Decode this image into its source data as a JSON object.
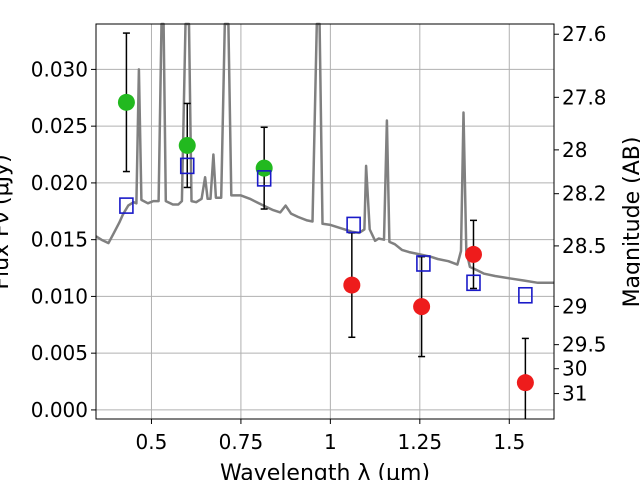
{
  "chart_data": {
    "type": "scatter",
    "title": "",
    "xlabel": "Wavelength  λ (μm)",
    "ylabel": "Flux Fν (μJy)",
    "y2label": "Magnitude (AB)",
    "xlim": [
      0.345,
      1.625
    ],
    "ylim": [
      -0.0008,
      0.034
    ],
    "grid": true,
    "x_ticks": [
      {
        "value": 0.5,
        "label": "0.5"
      },
      {
        "value": 0.75,
        "label": "0.75"
      },
      {
        "value": 1.0,
        "label": "1"
      },
      {
        "value": 1.25,
        "label": "1.25"
      },
      {
        "value": 1.5,
        "label": "1.5"
      }
    ],
    "y_ticks": [
      {
        "value": 0.0,
        "label": "0.000"
      },
      {
        "value": 0.005,
        "label": "0.005"
      },
      {
        "value": 0.01,
        "label": "0.010"
      },
      {
        "value": 0.015,
        "label": "0.015"
      },
      {
        "value": 0.02,
        "label": "0.020"
      },
      {
        "value": 0.025,
        "label": "0.025"
      },
      {
        "value": 0.03,
        "label": "0.030"
      }
    ],
    "y2_ticks": [
      {
        "flux": 0.0331,
        "label": "27.6"
      },
      {
        "flux": 0.02754,
        "label": "27.8"
      },
      {
        "flux": 0.02291,
        "label": "28"
      },
      {
        "flux": 0.01905,
        "label": "28.2"
      },
      {
        "flux": 0.01445,
        "label": "28.5"
      },
      {
        "flux": 0.00912,
        "label": "29"
      },
      {
        "flux": 0.00575,
        "label": "29.5"
      },
      {
        "flux": 0.00363,
        "label": "30"
      },
      {
        "flux": 0.00144,
        "label": "31"
      }
    ],
    "spectrum": {
      "color": "#808080",
      "points": [
        [
          0.345,
          0.0153
        ],
        [
          0.36,
          0.015
        ],
        [
          0.38,
          0.0147
        ],
        [
          0.395,
          0.0156
        ],
        [
          0.41,
          0.0165
        ],
        [
          0.42,
          0.0172
        ],
        [
          0.435,
          0.018
        ],
        [
          0.45,
          0.0183
        ],
        [
          0.458,
          0.0182
        ],
        [
          0.465,
          0.03
        ],
        [
          0.472,
          0.0185
        ],
        [
          0.49,
          0.0182
        ],
        [
          0.505,
          0.0184
        ],
        [
          0.52,
          0.0184
        ],
        [
          0.528,
          0.034
        ],
        [
          0.534,
          0.034
        ],
        [
          0.54,
          0.0184
        ],
        [
          0.56,
          0.0181
        ],
        [
          0.575,
          0.0181
        ],
        [
          0.585,
          0.0184
        ],
        [
          0.595,
          0.034
        ],
        [
          0.605,
          0.034
        ],
        [
          0.612,
          0.0184
        ],
        [
          0.625,
          0.0183
        ],
        [
          0.64,
          0.0186
        ],
        [
          0.65,
          0.0205
        ],
        [
          0.657,
          0.0186
        ],
        [
          0.665,
          0.0186
        ],
        [
          0.673,
          0.0225
        ],
        [
          0.68,
          0.0187
        ],
        [
          0.695,
          0.0187
        ],
        [
          0.705,
          0.034
        ],
        [
          0.715,
          0.034
        ],
        [
          0.723,
          0.0189
        ],
        [
          0.735,
          0.0189
        ],
        [
          0.75,
          0.0189
        ],
        [
          0.775,
          0.0186
        ],
        [
          0.8,
          0.0182
        ],
        [
          0.82,
          0.0179
        ],
        [
          0.84,
          0.0176
        ],
        [
          0.86,
          0.0174
        ],
        [
          0.875,
          0.018
        ],
        [
          0.89,
          0.0173
        ],
        [
          0.91,
          0.017
        ],
        [
          0.935,
          0.0167
        ],
        [
          0.95,
          0.0166
        ],
        [
          0.962,
          0.034
        ],
        [
          0.97,
          0.034
        ],
        [
          0.978,
          0.0164
        ],
        [
          1.0,
          0.0163
        ],
        [
          1.03,
          0.016
        ],
        [
          1.06,
          0.0157
        ],
        [
          1.08,
          0.0156
        ],
        [
          1.095,
          0.0159
        ],
        [
          1.1,
          0.0215
        ],
        [
          1.11,
          0.0159
        ],
        [
          1.125,
          0.0149
        ],
        [
          1.135,
          0.0151
        ],
        [
          1.15,
          0.015
        ],
        [
          1.158,
          0.0255
        ],
        [
          1.165,
          0.0148
        ],
        [
          1.18,
          0.0146
        ],
        [
          1.2,
          0.0141
        ],
        [
          1.22,
          0.0139
        ],
        [
          1.25,
          0.0137
        ],
        [
          1.28,
          0.0135
        ],
        [
          1.3,
          0.0133
        ],
        [
          1.33,
          0.0131
        ],
        [
          1.355,
          0.0128
        ],
        [
          1.365,
          0.014
        ],
        [
          1.372,
          0.0262
        ],
        [
          1.38,
          0.014
        ],
        [
          1.39,
          0.0126
        ],
        [
          1.41,
          0.0123
        ],
        [
          1.43,
          0.012
        ],
        [
          1.46,
          0.0118
        ],
        [
          1.5,
          0.0116
        ],
        [
          1.54,
          0.0114
        ],
        [
          1.58,
          0.0112
        ],
        [
          1.625,
          0.0112
        ]
      ]
    },
    "series": [
      {
        "marker": "circle",
        "color": "#22b91f",
        "points": [
          {
            "x": 0.43,
            "y": 0.0271,
            "err_low": 0.0061,
            "err_high": 0.0061
          },
          {
            "x": 0.6,
            "y": 0.0233,
            "err_low": 0.0037,
            "err_high": 0.0037
          },
          {
            "x": 0.815,
            "y": 0.0213,
            "err_low": 0.0036,
            "err_high": 0.0036
          }
        ]
      },
      {
        "marker": "circle",
        "color": "#ee1c1c",
        "points": [
          {
            "x": 1.06,
            "y": 0.011,
            "err_low": 0.0046,
            "err_high": 0.0046
          },
          {
            "x": 1.255,
            "y": 0.0091,
            "err_low": 0.0044,
            "err_high": 0.0044
          },
          {
            "x": 1.4,
            "y": 0.0137,
            "err_low": 0.003,
            "err_high": 0.003
          },
          {
            "x": 1.545,
            "y": 0.0024,
            "err_low": 0.0039,
            "err_high": 0.0039
          }
        ]
      },
      {
        "marker": "square",
        "color": "#1a1ac8",
        "points": [
          {
            "x": 0.43,
            "y": 0.018
          },
          {
            "x": 0.6,
            "y": 0.0215
          },
          {
            "x": 0.815,
            "y": 0.0204
          },
          {
            "x": 1.065,
            "y": 0.0163
          },
          {
            "x": 1.26,
            "y": 0.0129
          },
          {
            "x": 1.4,
            "y": 0.0112
          },
          {
            "x": 1.545,
            "y": 0.0101
          }
        ]
      }
    ]
  }
}
